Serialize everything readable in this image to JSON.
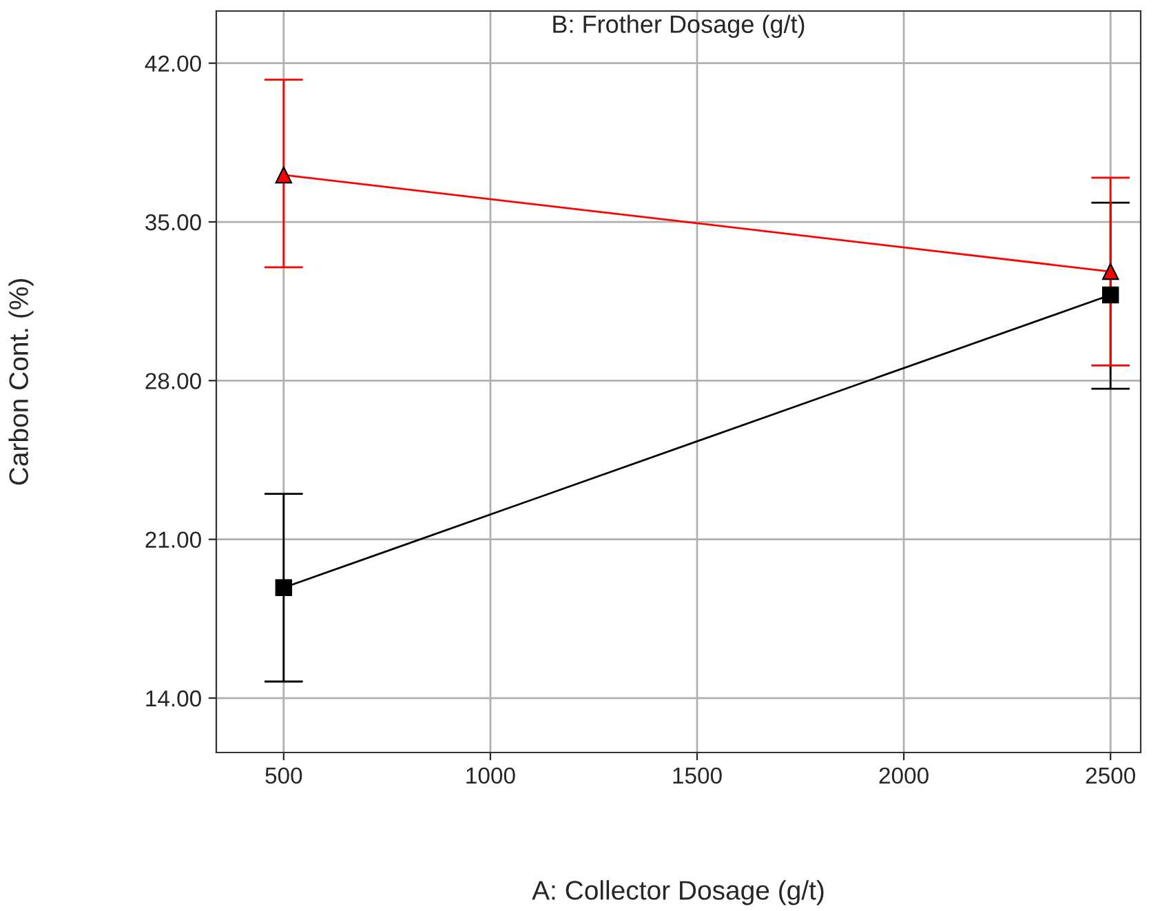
{
  "chart_data": {
    "type": "line",
    "title": "B: Frother Dosage (g/t)",
    "xlabel": "A: Collector Dosage (g/t)",
    "ylabel": "Carbon Cont. (%)",
    "x": [
      500,
      2500
    ],
    "series": [
      {
        "color": "#000000",
        "marker": "square",
        "values": [
          18.87,
          31.78
        ],
        "errors": [
          [
            14.73,
            23.01
          ],
          [
            27.64,
            35.85
          ]
        ]
      },
      {
        "color": "#ff0000",
        "marker": "triangle",
        "values": [
          37.07,
          32.81
        ],
        "errors": [
          [
            33.0,
            41.27
          ],
          [
            28.67,
            36.95
          ]
        ]
      }
    ],
    "xlim": [
      337,
      2573
    ],
    "ylim": [
      11.6,
      44.3
    ],
    "xticks": [
      500,
      1000,
      1500,
      2000,
      2500
    ],
    "yticks": [
      {
        "value": 14,
        "label": "14.00"
      },
      {
        "value": 21,
        "label": "21.00"
      },
      {
        "value": 28,
        "label": "28.00"
      },
      {
        "value": 35,
        "label": "35.00"
      },
      {
        "value": 42,
        "label": "42.00"
      }
    ],
    "grid": true,
    "legend": false,
    "line_style": "solid"
  }
}
